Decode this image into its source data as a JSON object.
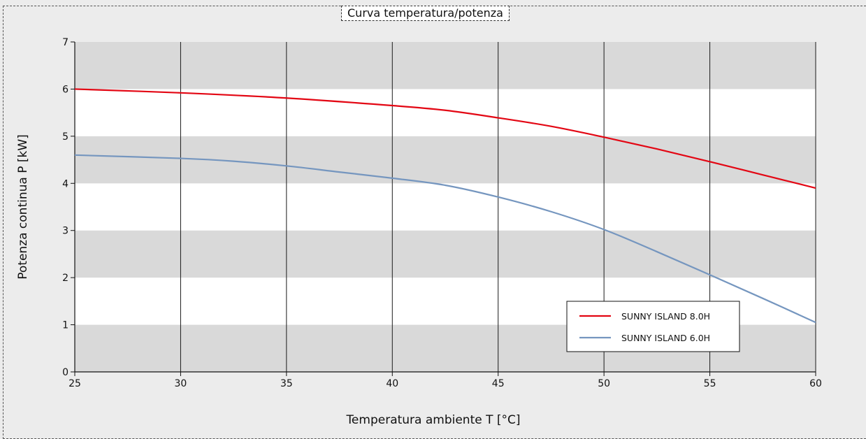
{
  "chart_data": {
    "type": "line",
    "title": "Curva temperatura/potenza",
    "xlabel": "Temperatura ambiente T [°C]",
    "ylabel": "Potenza continua P [kW]",
    "xlim": [
      25,
      60
    ],
    "ylim": [
      0,
      7
    ],
    "x_ticks": [
      25,
      30,
      35,
      40,
      45,
      50,
      55,
      60
    ],
    "y_ticks": [
      0,
      1,
      2,
      3,
      4,
      5,
      6,
      7
    ],
    "grid": "vertical lines at x ticks; alternating grey/white horizontal bands",
    "legend_position": "bottom-right",
    "series": [
      {
        "name": "SUNNY ISLAND 8.0H",
        "color": "#e30613",
        "x": [
          25,
          30,
          35,
          40,
          42.5,
          45,
          47.5,
          50,
          52.5,
          55,
          57.5,
          60
        ],
        "y": [
          6.0,
          5.92,
          5.81,
          5.65,
          5.55,
          5.39,
          5.21,
          4.98,
          4.73,
          4.46,
          4.18,
          3.9
        ]
      },
      {
        "name": "SUNNY ISLAND 6.0H",
        "color": "#7596bf",
        "x": [
          25,
          30,
          32.5,
          35,
          37.5,
          40,
          42.5,
          45,
          47.5,
          50,
          52.5,
          55,
          57.5,
          60
        ],
        "y": [
          4.6,
          4.53,
          4.47,
          4.37,
          4.24,
          4.11,
          3.96,
          3.71,
          3.4,
          3.02,
          2.55,
          2.06,
          1.56,
          1.05
        ]
      }
    ]
  }
}
